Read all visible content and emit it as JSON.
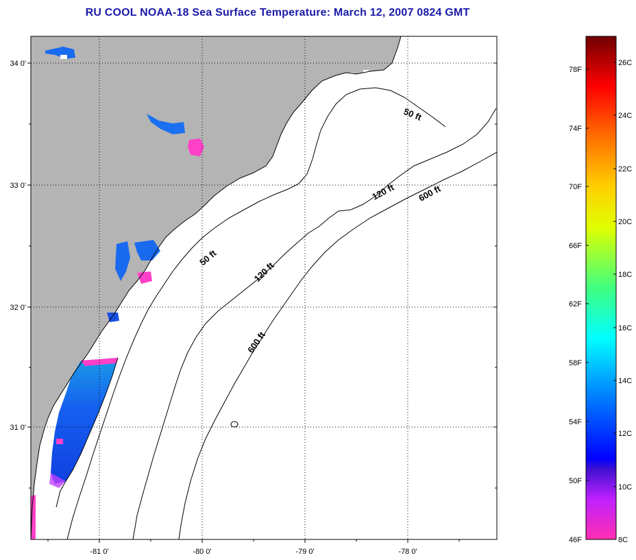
{
  "title": "RU COOL  NOAA-18  Sea Surface Temperature:  March 12, 2007 0824 GMT",
  "lat_labels": [
    "34 0'",
    "33 0'",
    "32 0'",
    "31 0'"
  ],
  "lon_labels": [
    "-81 0'",
    "-80 0'",
    "-79 0'",
    "-78 0'"
  ],
  "contour_labels": [
    "50 ft",
    "120 ft",
    "600 ft",
    "50 ft",
    "120 ft",
    "600 ft"
  ],
  "colorbar": {
    "fahrenheit_labels": [
      "78F",
      "74F",
      "70F",
      "66F",
      "62F",
      "58F",
      "54F",
      "50F",
      "46F"
    ],
    "celsius_labels": [
      "26C",
      "24C",
      "22C",
      "20C",
      "18C",
      "16C",
      "14C",
      "12C",
      "10C",
      "8C"
    ],
    "range_celsius": [
      8,
      27
    ]
  },
  "colors": {
    "title": "#1a1aa8",
    "land": "#b4b4b4",
    "ocean": "#ffffff",
    "cloud": "#ffffff",
    "water_sst": "#1060f0"
  }
}
